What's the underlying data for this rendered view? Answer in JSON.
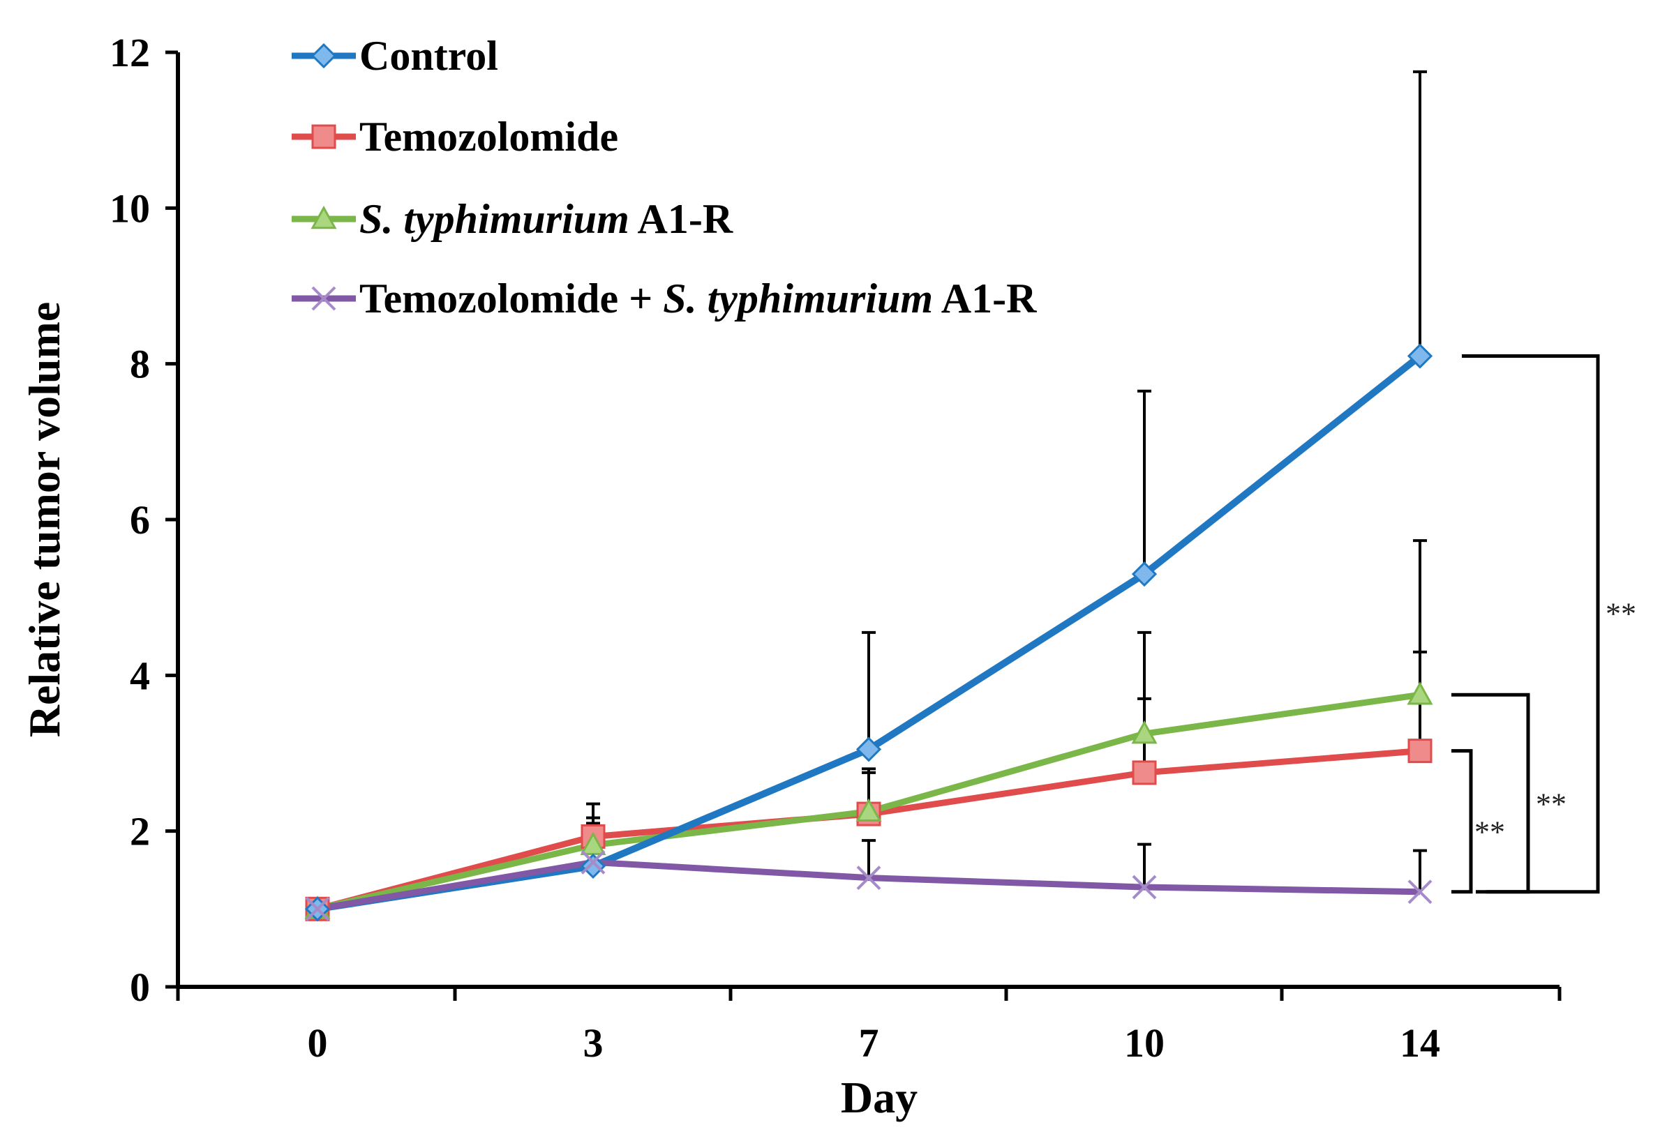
{
  "chart_data": {
    "type": "line",
    "title": "",
    "xlabel": "Day",
    "ylabel": "Relative tumor volume",
    "categories": [
      "0",
      "3",
      "7",
      "10",
      "14"
    ],
    "ylim": [
      0,
      12
    ],
    "yticks": [
      "0",
      "2",
      "4",
      "6",
      "8",
      "10",
      "12"
    ],
    "legend_position": "top-left",
    "grid": false,
    "series": [
      {
        "name": "Control",
        "legend_parts": [
          {
            "text": "Control",
            "italic": false
          }
        ],
        "color": "#1f78c1",
        "marker": "diamond",
        "values": [
          1.0,
          1.55,
          3.05,
          5.3,
          8.1
        ],
        "error_plus": [
          0,
          0.55,
          1.5,
          2.35,
          3.65
        ]
      },
      {
        "name": "Temozolomide",
        "legend_parts": [
          {
            "text": "Temozolomide",
            "italic": false
          }
        ],
        "color": "#e04b4b",
        "marker": "square",
        "values": [
          1.0,
          1.93,
          2.22,
          2.75,
          3.03
        ],
        "error_plus": [
          0,
          0.42,
          0.58,
          0.95,
          1.27
        ]
      },
      {
        "name": "S. typhimurium A1-R",
        "legend_parts": [
          {
            "text": "S. typhimurium",
            "italic": true
          },
          {
            "text": " A1-R",
            "italic": false
          }
        ],
        "color": "#7ab648",
        "marker": "triangle",
        "values": [
          1.0,
          1.82,
          2.25,
          3.25,
          3.75
        ],
        "error_plus": [
          0,
          0.35,
          0.5,
          1.3,
          1.98
        ]
      },
      {
        "name": "Temozolomide + S. typhimurium A1-R",
        "legend_parts": [
          {
            "text": "Temozolomide + ",
            "italic": false
          },
          {
            "text": "S. typhimurium",
            "italic": true
          },
          {
            "text": " A1-R",
            "italic": false
          }
        ],
        "color": "#8158a6",
        "marker": "x",
        "values": [
          1.0,
          1.6,
          1.4,
          1.28,
          1.22
        ],
        "error_plus": [
          0,
          0.5,
          0.48,
          0.55,
          0.53
        ]
      }
    ],
    "annotations": [
      {
        "type": "significance_bracket",
        "from_series": "Temozolomide",
        "to_series": "Temozolomide + S. typhimurium A1-R",
        "label": "**"
      },
      {
        "type": "significance_bracket",
        "from_series": "S. typhimurium A1-R",
        "to_series": "Temozolomide + S. typhimurium A1-R",
        "label": "**"
      },
      {
        "type": "significance_bracket",
        "from_series": "Control",
        "to_series": "Temozolomide + S. typhimurium A1-R",
        "label": "**"
      }
    ]
  }
}
